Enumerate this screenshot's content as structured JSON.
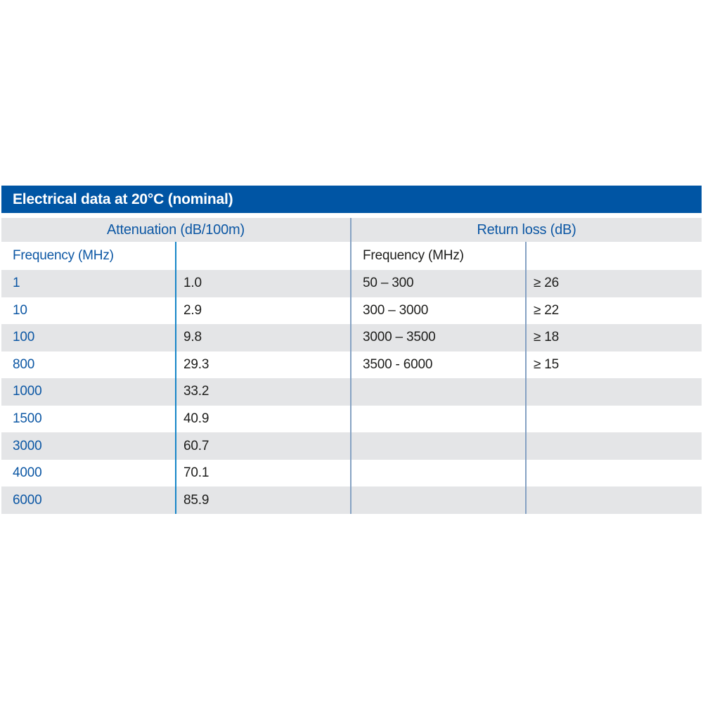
{
  "title_bar": {
    "label": "Electrical data at 20°C (nominal)"
  },
  "attenuation": {
    "header": "Attenuation (dB/100m)",
    "column_header": "Frequency (MHz)",
    "rows": [
      {
        "frequency": "1",
        "value": "1.0"
      },
      {
        "frequency": "10",
        "value": "2.9"
      },
      {
        "frequency": "100",
        "value": "9.8"
      },
      {
        "frequency": "800",
        "value": "29.3"
      },
      {
        "frequency": "1000",
        "value": "33.2"
      },
      {
        "frequency": "1500",
        "value": "40.9"
      },
      {
        "frequency": "3000",
        "value": "60.7"
      },
      {
        "frequency": "4000",
        "value": "70.1"
      },
      {
        "frequency": "6000",
        "value": "85.9"
      }
    ]
  },
  "return_loss": {
    "header": "Return loss (dB)",
    "column_header": "Frequency (MHz)",
    "rows": [
      {
        "frequency": "50 – 300",
        "value": "≥ 26"
      },
      {
        "frequency": "300 – 3000",
        "value": "≥ 22"
      },
      {
        "frequency": "3000 – 3500",
        "value": "≥ 18"
      },
      {
        "frequency": "3500 - 6000",
        "value": "≥ 15"
      },
      {
        "frequency": "",
        "value": ""
      },
      {
        "frequency": "",
        "value": ""
      },
      {
        "frequency": "",
        "value": ""
      },
      {
        "frequency": "",
        "value": ""
      },
      {
        "frequency": "",
        "value": ""
      }
    ]
  },
  "colors": {
    "title_bar_background": "#0055a4",
    "title_bar_text": "#ffffff",
    "header_text_blue": "#0c57a4",
    "body_text_dark": "#1d1d1b",
    "row_stripe_gray": "#e4e5e7",
    "divider_bright_blue": "#1786c8",
    "divider_steel_blue": "#86a2c3"
  }
}
